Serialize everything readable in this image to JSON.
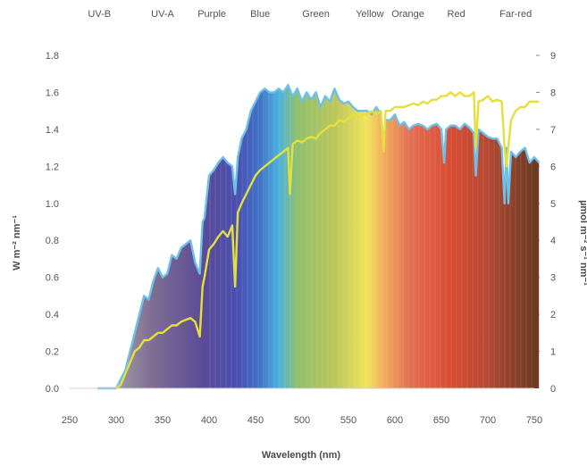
{
  "chart_data": {
    "type": "area",
    "title": "",
    "xlabel": "Wavelength (nm)",
    "ylabel": "W m⁻² nm⁻¹",
    "ylabel_right": "µmol m⁻² s⁻¹ nm⁻¹",
    "xlim": [
      250,
      750
    ],
    "ylim": [
      0,
      1.8
    ],
    "ylim_right": [
      0,
      9
    ],
    "x_ticks": [
      250,
      300,
      350,
      400,
      450,
      500,
      550,
      600,
      650,
      700,
      750
    ],
    "y_ticks": [
      "0.0",
      "0.2",
      "0.4",
      "0.6",
      "0.8",
      "1.0",
      "1.2",
      "1.4",
      "1.6",
      "1.8"
    ],
    "y_ticks_right": [
      "0",
      "1",
      "2",
      "3",
      "4",
      "5",
      "6",
      "7",
      "8",
      "9"
    ],
    "bands": [
      {
        "label": "UV-B",
        "x": 282
      },
      {
        "label": "UV-A",
        "x": 350
      },
      {
        "label": "Purple",
        "x": 403
      },
      {
        "label": "Blue",
        "x": 455
      },
      {
        "label": "Green",
        "x": 515
      },
      {
        "label": "Yellow",
        "x": 573
      },
      {
        "label": "Orange",
        "x": 614
      },
      {
        "label": "Red",
        "x": 666
      },
      {
        "label": "Far-red",
        "x": 730
      }
    ],
    "series": [
      {
        "axis": "left",
        "color": "#6cc0ea",
        "x": [
          280,
          295,
          300,
          305,
          310,
          315,
          320,
          325,
          330,
          335,
          340,
          345,
          350,
          355,
          360,
          365,
          370,
          375,
          380,
          385,
          390,
          393,
          395,
          400,
          405,
          410,
          415,
          420,
          425,
          428,
          431,
          435,
          440,
          445,
          450,
          455,
          460,
          465,
          470,
          475,
          480,
          485,
          490,
          495,
          500,
          505,
          510,
          515,
          520,
          525,
          530,
          535,
          540,
          545,
          550,
          555,
          560,
          565,
          570,
          575,
          580,
          585,
          588,
          590,
          595,
          600,
          605,
          610,
          615,
          620,
          625,
          630,
          635,
          640,
          645,
          650,
          653,
          655,
          660,
          665,
          670,
          675,
          680,
          685,
          687,
          690,
          695,
          700,
          705,
          710,
          715,
          718,
          720,
          722,
          725,
          730,
          735,
          740,
          745,
          750,
          755
        ],
        "y": [
          0,
          0,
          0,
          0.05,
          0.1,
          0.2,
          0.3,
          0.4,
          0.5,
          0.48,
          0.58,
          0.65,
          0.6,
          0.62,
          0.72,
          0.7,
          0.76,
          0.78,
          0.8,
          0.68,
          0.62,
          0.9,
          0.92,
          1.15,
          1.18,
          1.22,
          1.25,
          1.22,
          1.2,
          1.05,
          1.25,
          1.35,
          1.4,
          1.5,
          1.55,
          1.6,
          1.62,
          1.6,
          1.6,
          1.62,
          1.6,
          1.64,
          1.58,
          1.62,
          1.55,
          1.6,
          1.56,
          1.6,
          1.52,
          1.58,
          1.55,
          1.62,
          1.56,
          1.54,
          1.55,
          1.52,
          1.5,
          1.5,
          1.5,
          1.48,
          1.52,
          1.48,
          1.32,
          1.45,
          1.45,
          1.48,
          1.42,
          1.44,
          1.4,
          1.42,
          1.43,
          1.42,
          1.4,
          1.42,
          1.43,
          1.4,
          1.22,
          1.4,
          1.42,
          1.42,
          1.4,
          1.43,
          1.41,
          1.38,
          1.15,
          1.4,
          1.38,
          1.36,
          1.35,
          1.35,
          1.3,
          1.0,
          1.3,
          1.0,
          1.28,
          1.25,
          1.28,
          1.3,
          1.22,
          1.25,
          1.22
        ]
      },
      {
        "axis": "left",
        "color": "#e4df3a",
        "x": [
          300,
          305,
          310,
          315,
          320,
          325,
          330,
          335,
          340,
          345,
          350,
          355,
          360,
          365,
          370,
          375,
          380,
          385,
          390,
          393,
          395,
          400,
          405,
          410,
          415,
          420,
          425,
          428,
          431,
          435,
          440,
          445,
          450,
          455,
          460,
          465,
          470,
          475,
          480,
          485,
          487,
          490,
          495,
          500,
          505,
          510,
          515,
          520,
          525,
          530,
          535,
          540,
          545,
          550,
          555,
          560,
          565,
          570,
          575,
          580,
          585,
          588,
          590,
          595,
          600,
          605,
          610,
          615,
          620,
          625,
          630,
          635,
          640,
          645,
          650,
          655,
          660,
          665,
          670,
          675,
          680,
          685,
          687,
          690,
          695,
          700,
          705,
          710,
          715,
          718,
          720,
          722,
          725,
          730,
          735,
          740,
          745,
          750,
          755
        ],
        "y": [
          0,
          0.02,
          0.08,
          0.14,
          0.2,
          0.22,
          0.26,
          0.26,
          0.28,
          0.3,
          0.3,
          0.32,
          0.34,
          0.34,
          0.36,
          0.37,
          0.38,
          0.36,
          0.28,
          0.55,
          0.6,
          0.75,
          0.78,
          0.82,
          0.85,
          0.82,
          0.88,
          0.55,
          0.95,
          1.0,
          1.05,
          1.1,
          1.15,
          1.18,
          1.2,
          1.22,
          1.24,
          1.26,
          1.28,
          1.3,
          1.05,
          1.32,
          1.34,
          1.33,
          1.35,
          1.36,
          1.35,
          1.38,
          1.4,
          1.42,
          1.42,
          1.45,
          1.44,
          1.46,
          1.48,
          1.46,
          1.48,
          1.48,
          1.5,
          1.48,
          1.5,
          1.28,
          1.5,
          1.5,
          1.52,
          1.52,
          1.52,
          1.53,
          1.54,
          1.53,
          1.55,
          1.54,
          1.56,
          1.56,
          1.58,
          1.58,
          1.6,
          1.58,
          1.6,
          1.58,
          1.58,
          1.6,
          1.3,
          1.55,
          1.56,
          1.58,
          1.55,
          1.56,
          1.55,
          1.3,
          1.2,
          1.3,
          1.45,
          1.5,
          1.52,
          1.52,
          1.55,
          1.55,
          1.55
        ]
      }
    ]
  }
}
